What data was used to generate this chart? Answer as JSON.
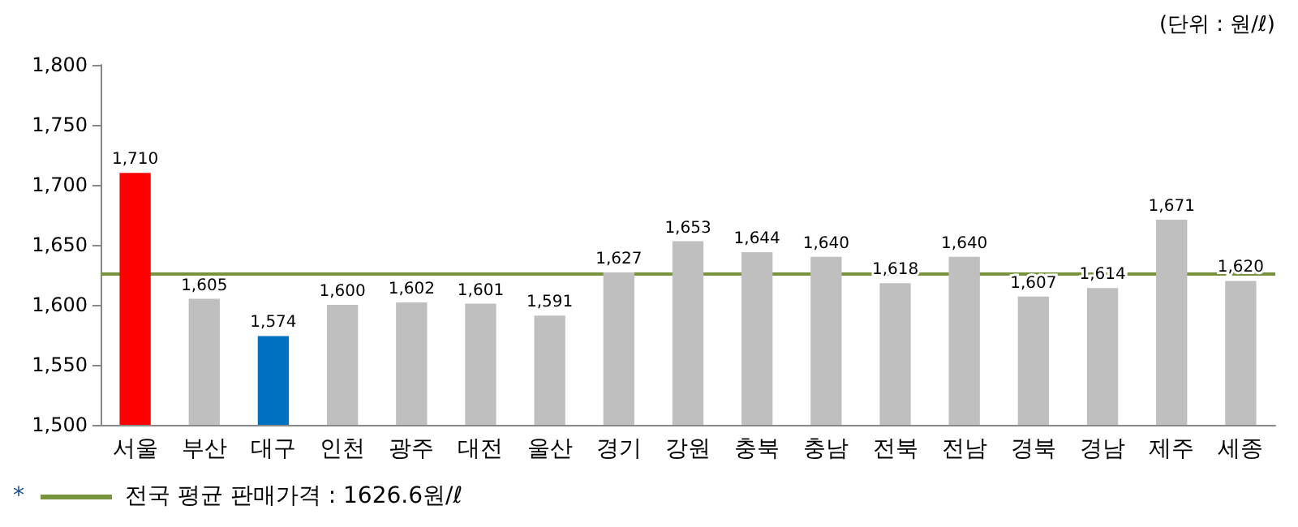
{
  "chart_data": {
    "type": "bar",
    "categories": [
      "서울",
      "부산",
      "대구",
      "인천",
      "광주",
      "대전",
      "울산",
      "경기",
      "강원",
      "충북",
      "충남",
      "전북",
      "전남",
      "경북",
      "경남",
      "제주",
      "세종"
    ],
    "values": [
      1710,
      1605,
      1574,
      1600,
      1602,
      1601,
      1591,
      1627,
      1653,
      1644,
      1640,
      1618,
      1640,
      1607,
      1614,
      1671,
      1620
    ],
    "colors": [
      "#ff0000",
      "#bfbfbf",
      "#0070c0",
      "#bfbfbf",
      "#bfbfbf",
      "#bfbfbf",
      "#bfbfbf",
      "#bfbfbf",
      "#bfbfbf",
      "#bfbfbf",
      "#bfbfbf",
      "#bfbfbf",
      "#bfbfbf",
      "#bfbfbf",
      "#bfbfbf",
      "#bfbfbf",
      "#bfbfbf"
    ],
    "value_labels": [
      "1,710",
      "1,605",
      "1,574",
      "1,600",
      "1,602",
      "1,601",
      "1,591",
      "1,627",
      "1,653",
      "1,644",
      "1,640",
      "1,618",
      "1,640",
      "1,607",
      "1,614",
      "1,671",
      "1,620"
    ],
    "ylim": [
      1500,
      1800
    ],
    "yticks": [
      {
        "value": 1500,
        "label": "1,500"
      },
      {
        "value": 1550,
        "label": "1,550"
      },
      {
        "value": 1600,
        "label": "1,600"
      },
      {
        "value": 1650,
        "label": "1,650"
      },
      {
        "value": 1700,
        "label": "1,700"
      },
      {
        "value": 1750,
        "label": "1,750"
      },
      {
        "value": 1800,
        "label": "1,800"
      }
    ],
    "ref_lines": [
      {
        "axis": "y",
        "value": 1626.6,
        "label": "전국 평균 판매가격 : 1626.6원/ℓ",
        "color": "#77933c"
      }
    ],
    "annotations": [
      "(단위 : 원/ℓ)",
      "*"
    ],
    "grid": false
  }
}
